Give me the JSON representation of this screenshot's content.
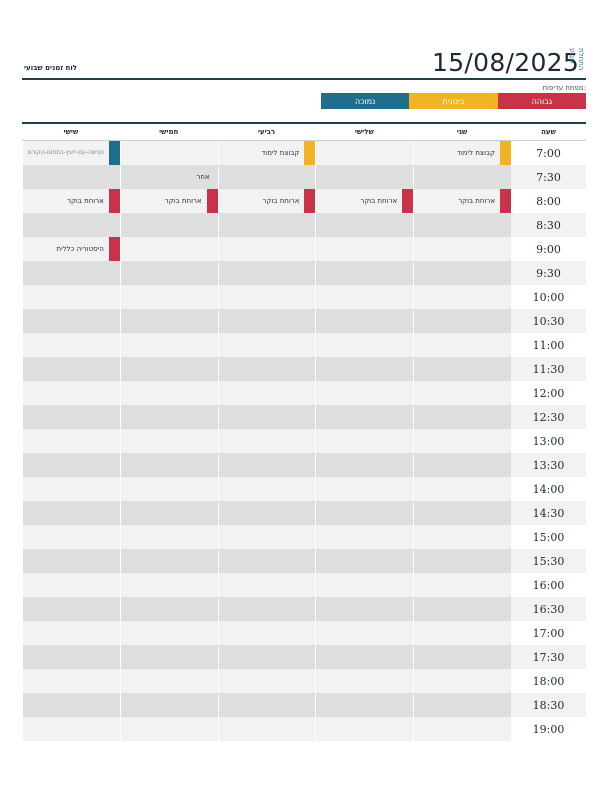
{
  "header": {
    "date": "15/08/2025",
    "start_label": "התחלת שבוע",
    "title": "לוח זמנים שבועי"
  },
  "legend": {
    "label": "מפתח עדיפות:",
    "items": [
      {
        "label": "גבוהה",
        "color": "#c8334a"
      },
      {
        "label": "בינונית",
        "color": "#f0b323"
      },
      {
        "label": "נמוכה",
        "color": "#1f6e8c"
      }
    ]
  },
  "columns": [
    "שעה",
    "שני",
    "שלישי",
    "רביעי",
    "חמישי",
    "שישי"
  ],
  "times": [
    "7:00",
    "7:30",
    "8:00",
    "8:30",
    "9:00",
    "9:30",
    "10:00",
    "10:30",
    "11:00",
    "11:30",
    "12:00",
    "12:30",
    "13:00",
    "13:30",
    "14:00",
    "14:30",
    "15:00",
    "15:30",
    "16:00",
    "16:30",
    "17:00",
    "17:30",
    "18:00",
    "18:30",
    "19:00"
  ],
  "events": [
    {
      "row": 0,
      "col": 0,
      "text": "קבוצת לימוד",
      "color": "#f0b323"
    },
    {
      "row": 0,
      "col": 2,
      "text": "קבוצת לימוד",
      "color": "#f0b323"
    },
    {
      "row": 0,
      "col": 4,
      "text": "פגישה-עם-יועץ-בתחום-הקורס",
      "color": "#1f6e8c",
      "faint": true
    },
    {
      "row": 1,
      "col": 3,
      "text": "אחר",
      "color": ""
    },
    {
      "row": 2,
      "col": 0,
      "text": "ארוחת בוקר",
      "color": "#c8334a"
    },
    {
      "row": 2,
      "col": 1,
      "text": "ארוחת בוקר",
      "color": "#c8334a"
    },
    {
      "row": 2,
      "col": 2,
      "text": "ארוחת בוקר",
      "color": "#c8334a"
    },
    {
      "row": 2,
      "col": 3,
      "text": "ארוחת בוקר",
      "color": "#c8334a"
    },
    {
      "row": 2,
      "col": 4,
      "text": "ארוחת בוקר",
      "color": "#c8334a"
    },
    {
      "row": 4,
      "col": 4,
      "text": "היסטוריה כללית",
      "color": "#c8334a"
    }
  ]
}
